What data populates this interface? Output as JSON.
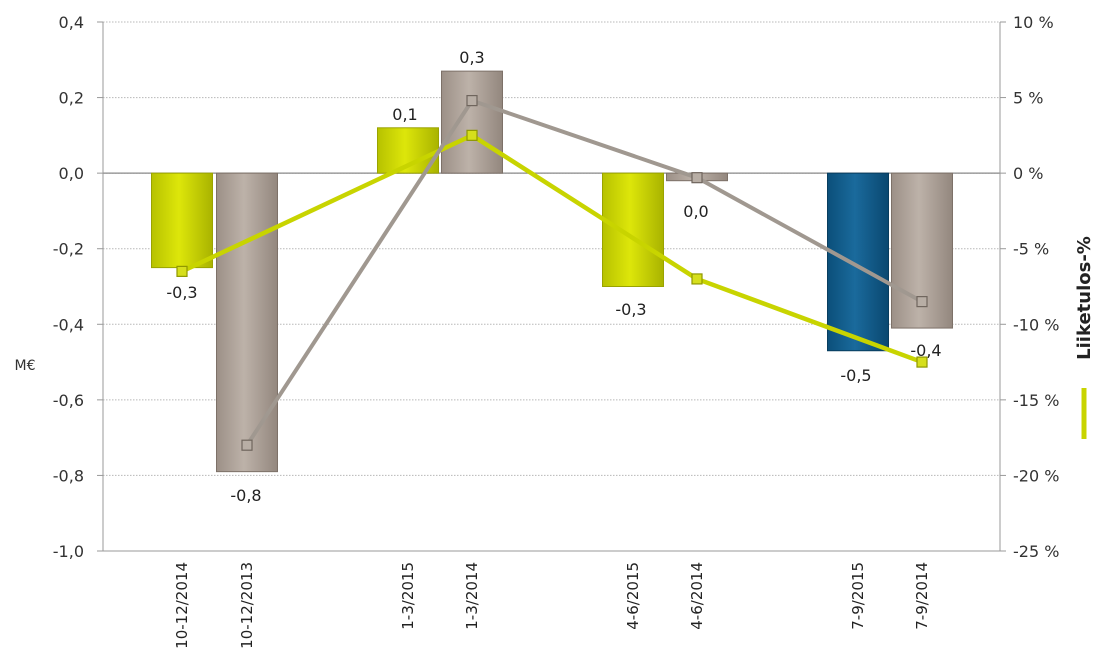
{
  "chart_data": {
    "type": "bar",
    "categories": [
      "10-12/2014",
      "10-12/2013",
      "1-3/2015",
      "1-3/2014",
      "4-6/2015",
      "4-6/2014",
      "7-9/2015",
      "7-9/2014"
    ],
    "bars": [
      {
        "category": "10-12/2014",
        "value": -0.25,
        "label": "-0,3",
        "color": "#c8d400"
      },
      {
        "category": "10-12/2013",
        "value": -0.79,
        "label": "-0,8",
        "color": "#aca096"
      },
      {
        "category": "1-3/2015",
        "value": 0.12,
        "label": "0,1",
        "color": "#c8d400"
      },
      {
        "category": "1-3/2014",
        "value": 0.27,
        "label": "0,3",
        "color": "#aca096"
      },
      {
        "category": "4-6/2015",
        "value": -0.3,
        "label": "-0,3",
        "color": "#c8d400"
      },
      {
        "category": "4-6/2014",
        "value": -0.02,
        "label": "0,0",
        "color": "#aca096"
      },
      {
        "category": "7-9/2015",
        "value": -0.47,
        "label": "-0,5",
        "color": "#0e5a8a"
      },
      {
        "category": "7-9/2014",
        "value": -0.41,
        "label": "-0,4",
        "color": "#aca096"
      }
    ],
    "lines": [
      {
        "color": "#c8d400",
        "points": [
          {
            "category": "10-12/2014",
            "value": -6.5
          },
          {
            "category": "1-3/2014",
            "value": 2.5
          },
          {
            "category": "4-6/2014",
            "value": -7.0
          },
          {
            "category": "7-9/2014",
            "value": -12.5
          }
        ]
      },
      {
        "color": "#a09890",
        "points": [
          {
            "category": "10-12/2013",
            "value": -18.0
          },
          {
            "category": "1-3/2014",
            "value": 4.8
          },
          {
            "category": "4-6/2014",
            "value": -0.3
          },
          {
            "category": "7-9/2014",
            "value": -8.5
          }
        ]
      }
    ],
    "ylabel": "M€",
    "y2label": "Liiketulos-%",
    "ylim": [
      -1.0,
      0.4
    ],
    "y2lim": [
      -25,
      10
    ],
    "yticks": [
      "0,4",
      "0,2",
      "0,0",
      "-0,2",
      "-0,4",
      "-0,6",
      "-0,8",
      "-1,0"
    ],
    "y2ticks": [
      "10 %",
      "5 %",
      "0 %",
      "-5 %",
      "-10 %",
      "-15 %",
      "-20 %",
      "-25 %"
    ],
    "grid": true
  }
}
